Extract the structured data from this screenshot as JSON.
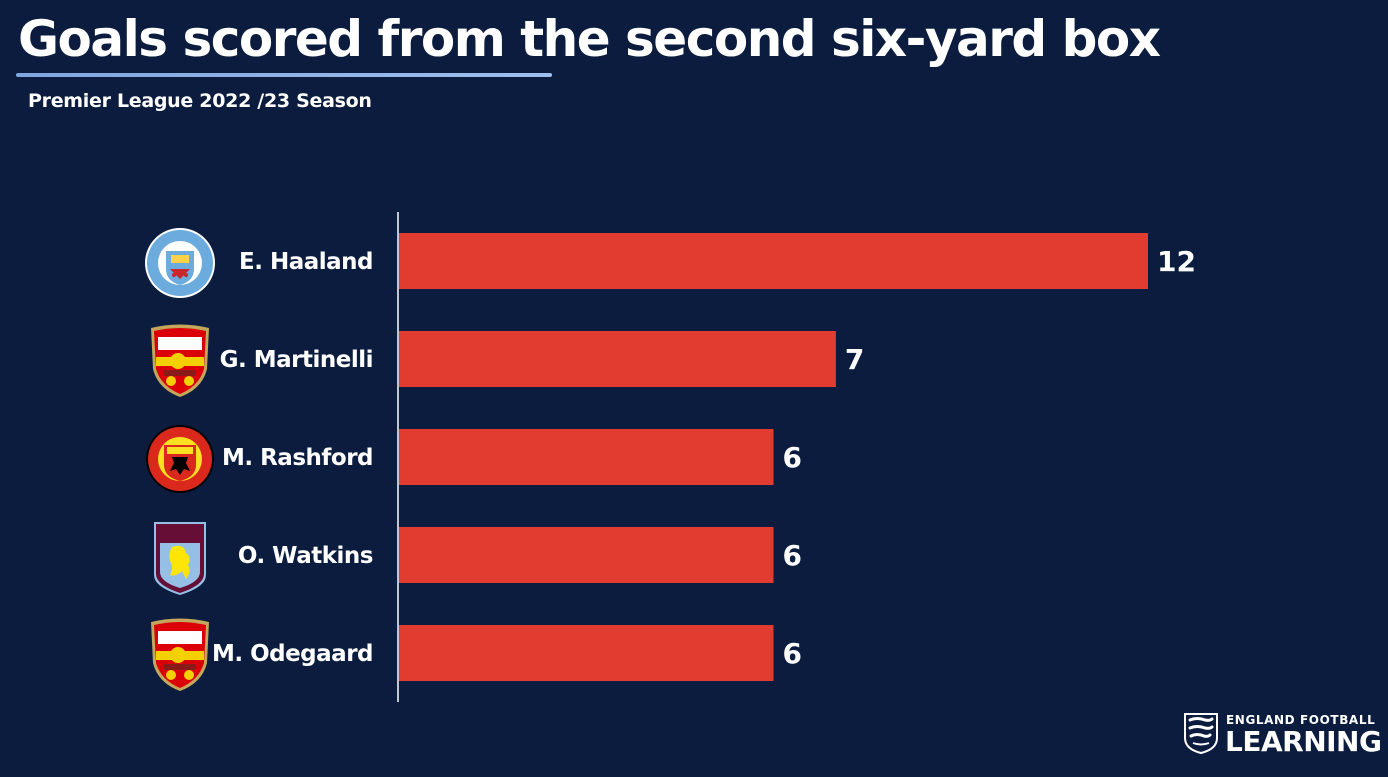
{
  "title": "Goals scored from the second six-yard box",
  "subtitle": "Premier League 2022 /23 Season",
  "colors": {
    "background": "#0b1c3e",
    "bar": "#e13c2f",
    "text": "#ffffff",
    "axis": "#ffffff",
    "title_rule": "#8fb2e8"
  },
  "chart_data": {
    "type": "bar",
    "orientation": "horizontal",
    "title": "Goals scored from the second six-yard box",
    "subtitle": "Premier League 2022 /23 Season",
    "categories": [
      "E. Haaland",
      "G. Martinelli",
      "M. Rashford",
      "O. Watkins",
      "M. Odegaard"
    ],
    "values": [
      12,
      7,
      6,
      6,
      6
    ],
    "value_labels": [
      "12",
      "7",
      "6",
      "6",
      "6"
    ],
    "xlim": [
      0,
      12
    ],
    "grid": false,
    "legend": "none",
    "club_icons": [
      "manchester-city-crest-icon",
      "arsenal-crest-icon",
      "manchester-united-crest-icon",
      "aston-villa-crest-icon",
      "arsenal-crest-icon"
    ],
    "club_crest_text": [
      "MANCHESTER CITY",
      "Arsenal",
      "MANCHESTER UNITED",
      "AVFC",
      "Arsenal"
    ]
  },
  "footer_logo": {
    "top_text": "ENGLAND FOOTBALL",
    "main_text": "LEARNING",
    "icon": "england-three-lions-icon"
  }
}
